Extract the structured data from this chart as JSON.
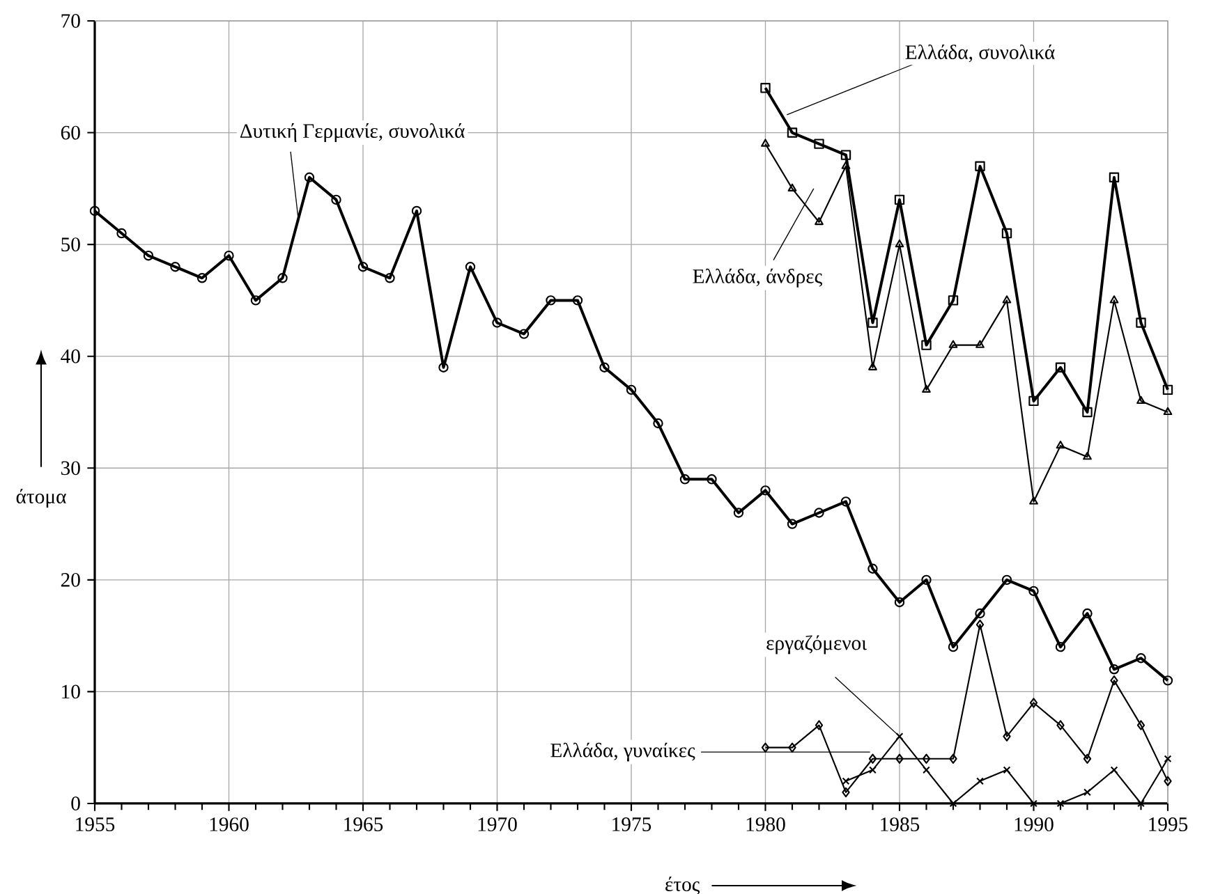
{
  "chart_data": {
    "type": "line",
    "xlabel": "έτος",
    "ylabel": "άτομα",
    "xlim": [
      1955,
      1995
    ],
    "xticks": [
      1955,
      1960,
      1965,
      1970,
      1975,
      1980,
      1985,
      1990,
      1995
    ],
    "ylim": [
      0,
      70
    ],
    "yticks": [
      0,
      10,
      20,
      30,
      40,
      50,
      60,
      70
    ],
    "grid": true,
    "line_style": "solid",
    "series": [
      {
        "name": "Δυτική Γερμανίε, συνολικά",
        "color": "#000000",
        "marker": "circle",
        "x": [
          1955,
          1956,
          1957,
          1958,
          1959,
          1960,
          1961,
          1962,
          1963,
          1964,
          1965,
          1966,
          1967,
          1968,
          1969,
          1970,
          1971,
          1972,
          1973,
          1974,
          1975,
          1976,
          1977,
          1978,
          1979,
          1980,
          1981,
          1982,
          1983,
          1984,
          1985,
          1986,
          1987,
          1988,
          1989,
          1990,
          1991,
          1992,
          1993,
          1994,
          1995
        ],
        "values": [
          53,
          51,
          49,
          48,
          47,
          49,
          45,
          47,
          56,
          54,
          48,
          47,
          53,
          39,
          48,
          43,
          42,
          45,
          45,
          39,
          37,
          34,
          29,
          29,
          26,
          28,
          25,
          26,
          27,
          21,
          18,
          20,
          14,
          17,
          20,
          19,
          14,
          17,
          12,
          13,
          11
        ]
      },
      {
        "name": "Ελλάδα, συνολικά",
        "color": "#000000",
        "marker": "square",
        "x": [
          1980,
          1981,
          1982,
          1983,
          1984,
          1985,
          1986,
          1987,
          1988,
          1989,
          1990,
          1991,
          1992,
          1993,
          1994,
          1995
        ],
        "values": [
          64,
          60,
          59,
          58,
          43,
          54,
          41,
          45,
          57,
          51,
          36,
          39,
          35,
          56,
          43,
          37
        ]
      },
      {
        "name": "Ελλάδα, άνδρες",
        "color": "#000000",
        "marker": "triangle",
        "x": [
          1980,
          1981,
          1982,
          1983,
          1984,
          1985,
          1986,
          1987,
          1988,
          1989,
          1990,
          1991,
          1992,
          1993,
          1994,
          1995
        ],
        "values": [
          59,
          55,
          52,
          57,
          39,
          50,
          37,
          41,
          41,
          45,
          27,
          32,
          31,
          45,
          36,
          35
        ]
      },
      {
        "name": "Ελλάδα, γυναίκες",
        "color": "#000000",
        "marker": "diamond",
        "x": [
          1980,
          1981,
          1982,
          1983,
          1984,
          1985,
          1986,
          1987,
          1988,
          1989,
          1990,
          1991,
          1992,
          1993,
          1994,
          1995
        ],
        "values": [
          5,
          5,
          7,
          1,
          4,
          4,
          4,
          4,
          16,
          6,
          9,
          7,
          4,
          11,
          7,
          2
        ]
      },
      {
        "name": "εργαζόμενοι",
        "color": "#000000",
        "marker": "cross",
        "x": [
          1983,
          1984,
          1985,
          1986,
          1987,
          1988,
          1989,
          1990,
          1991,
          1992,
          1993,
          1994,
          1995
        ],
        "values": [
          2,
          3,
          6,
          3,
          0,
          2,
          3,
          0,
          0,
          1,
          3,
          0,
          4
        ]
      }
    ]
  }
}
